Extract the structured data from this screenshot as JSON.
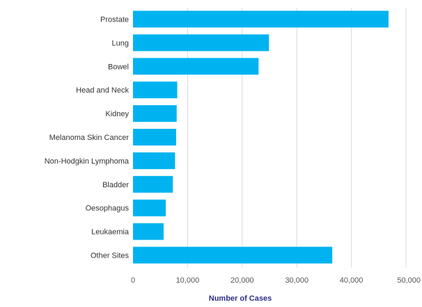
{
  "colors": {
    "bar": "#00b3f0",
    "grid": "#d9d9d9",
    "axis_title": "#2e2e8a"
  },
  "chart_data": {
    "type": "bar",
    "orientation": "horizontal",
    "categories": [
      "Prostate",
      "Lung",
      "Bowel",
      "Head and Neck",
      "Kidney",
      "Melanoma Skin Cancer",
      "Non-Hodgkin Lymphoma",
      "Bladder",
      "Oesophagus",
      "Leukaemia",
      "Other Sites"
    ],
    "values": [
      46800,
      24900,
      23000,
      8100,
      8000,
      7900,
      7700,
      7300,
      6000,
      5600,
      36500
    ],
    "title": "",
    "xlabel": "Number of Cases",
    "ylabel": "",
    "xlim": [
      0,
      50000
    ],
    "ticks": [
      0,
      10000,
      20000,
      30000,
      40000,
      50000
    ],
    "tick_labels": [
      "0",
      "10,000",
      "20,000",
      "30,000",
      "40,000",
      "50,000"
    ],
    "grid": true,
    "legend": "none"
  }
}
